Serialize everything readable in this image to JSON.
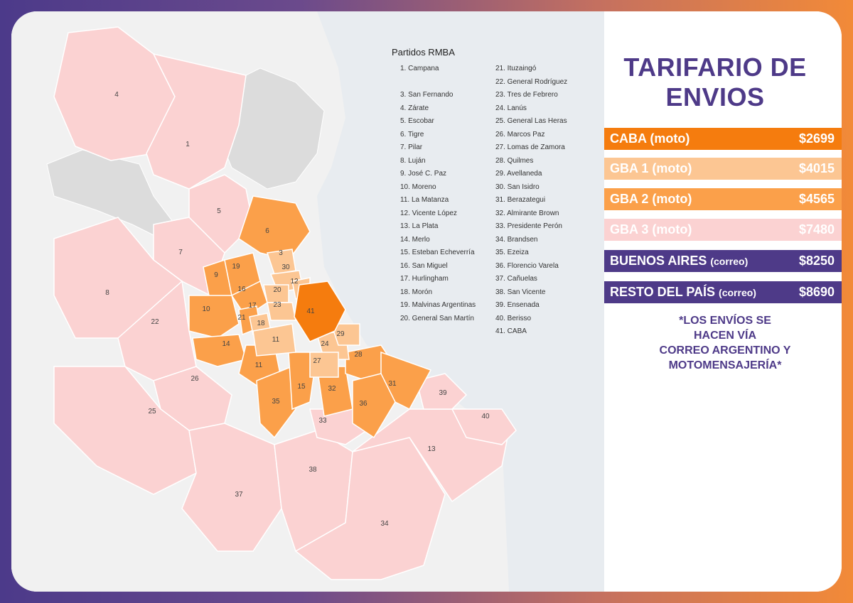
{
  "panel": {
    "title_line1": "TARIFARIO DE",
    "title_line2": "ENVIOS",
    "rates": [
      {
        "label": "CABA (moto)",
        "suffix": "",
        "price": "$2699",
        "color": "#f57c0e"
      },
      {
        "label": "GBA 1 (moto)",
        "suffix": "",
        "price": "$4015",
        "color": "#fcc693"
      },
      {
        "label": "GBA 2 (moto)",
        "suffix": "",
        "price": "$4565",
        "color": "#fba04a"
      },
      {
        "label": "GBA 3 (moto)",
        "suffix": "",
        "price": "$7480",
        "color": "#fbd2d2"
      },
      {
        "label": "BUENOS AIRES ",
        "suffix": "(correo)",
        "price": "$8250",
        "color": "#4e3a88"
      },
      {
        "label": "RESTO DEL PAÍS ",
        "suffix": "(correo)",
        "price": "$8690",
        "color": "#4e3a88"
      }
    ],
    "note_lines": [
      "*LOS ENVÍOS SE",
      "HACEN VÍA",
      "CORREO ARGENTINO Y",
      "MOTOMENSAJERÍA*"
    ]
  },
  "legend": {
    "title": "Partidos RMBA",
    "col1": [
      "1. Campana",
      "",
      "3. San Fernando",
      "4. Zárate",
      "5. Escobar",
      "6. Tigre",
      "7. Pilar",
      "8. Luján",
      "9. José C. Paz",
      "10. Moreno",
      "11. La Matanza",
      "12. Vicente López",
      "13. La Plata",
      "14. Merlo",
      "15. Esteban Echeverría",
      "16. San Miguel",
      "17. Hurlingham",
      "18. Morón",
      "19. Malvinas Argentinas",
      "20. General San Martín"
    ],
    "col2": [
      "21. Ituzaingó",
      "22. General Rodríguez",
      "23. Tres de Febrero",
      "24. Lanús",
      "25. General Las Heras",
      "26. Marcos Paz",
      "27. Lomas de Zamora",
      "28. Quilmes",
      "29. Avellaneda",
      "30. San Isidro",
      "31. Berazategui",
      "32. Almirante Brown",
      "33. Presidente Perón",
      "34. Brandsen",
      "35. Ezeiza",
      "36. Florencio Varela",
      "37. Cañuelas",
      "38. San Vicente",
      "39. Ensenada",
      "40. Berisso",
      "41. CABA"
    ]
  },
  "map_colors": {
    "caba": "#f57c0e",
    "gba1": "#fcc693",
    "gba2": "#fba04a",
    "gba3": "#fbd2d2",
    "outside": "#dcdcdc",
    "water": "#e8ecf0"
  }
}
